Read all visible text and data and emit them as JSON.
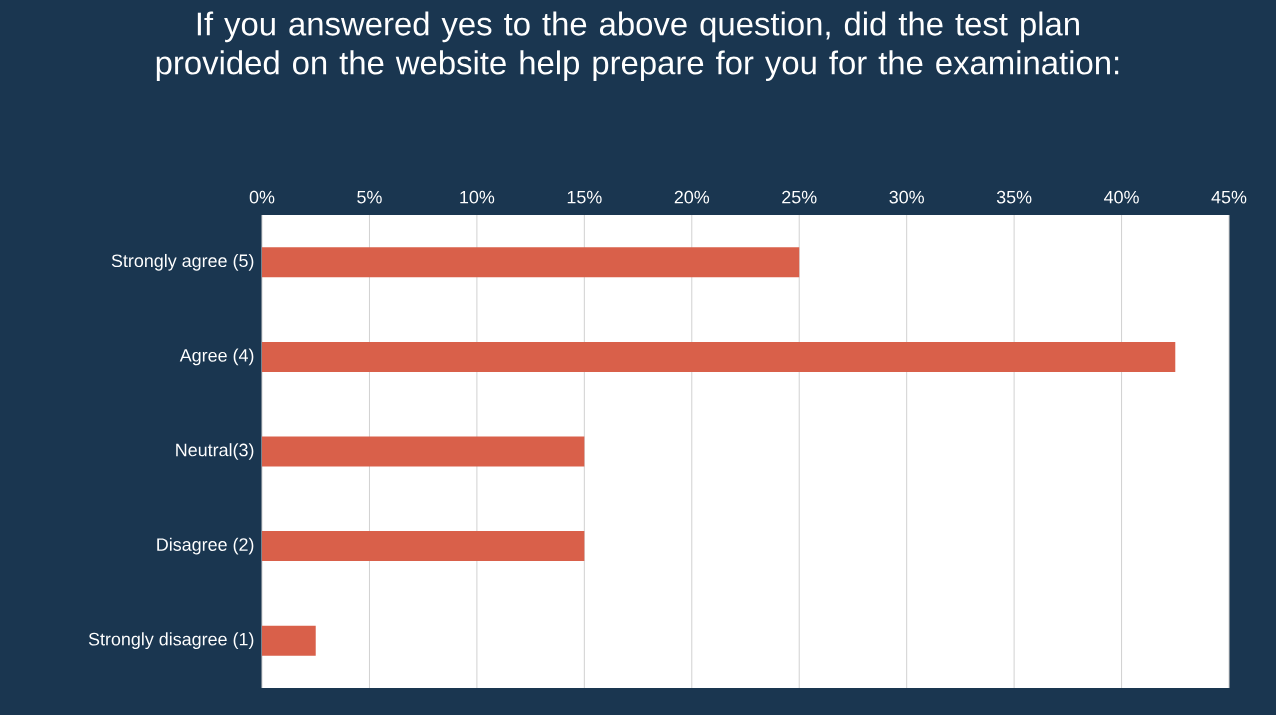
{
  "chart_data": {
    "type": "bar",
    "orientation": "horizontal",
    "title": "If you answered yes to the above question, did the test plan provided on the website help prepare for you for the examination:",
    "categories": [
      "Strongly agree (5)",
      "Agree (4)",
      "Neutral(3)",
      "Disagree (2)",
      "Strongly disagree (1)"
    ],
    "values": [
      25,
      42.5,
      15,
      15,
      2.5
    ],
    "color": "#d9604a",
    "xlim": [
      0,
      45
    ],
    "xticks": [
      {
        "value": 0,
        "label": "0%"
      },
      {
        "value": 5,
        "label": "5%"
      },
      {
        "value": 10,
        "label": "10%"
      },
      {
        "value": 15,
        "label": "15%"
      },
      {
        "value": 20,
        "label": "20%"
      },
      {
        "value": 25,
        "label": "25%"
      },
      {
        "value": 30,
        "label": "30%"
      },
      {
        "value": 35,
        "label": "35%"
      },
      {
        "value": 40,
        "label": "40%"
      },
      {
        "value": 45,
        "label": "45%"
      }
    ],
    "grid": "x"
  }
}
